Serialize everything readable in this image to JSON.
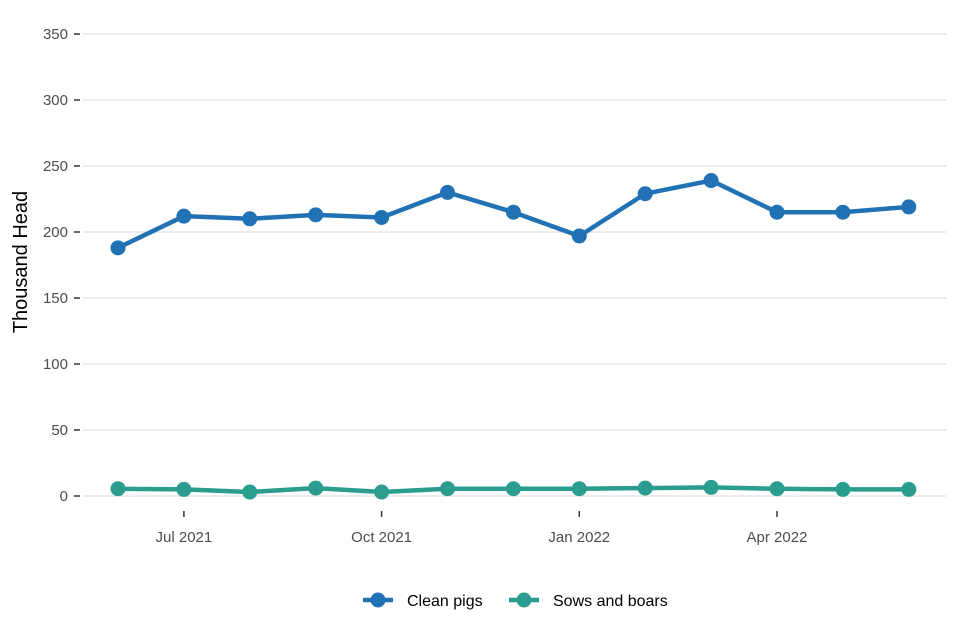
{
  "chart_data": {
    "type": "line",
    "ylabel": "Thousand Head",
    "ylim": [
      0,
      350
    ],
    "yticks": [
      0,
      50,
      100,
      150,
      200,
      250,
      300,
      350
    ],
    "x": [
      "2021-06",
      "2021-07",
      "2021-08",
      "2021-09",
      "2021-10",
      "2021-11",
      "2021-12",
      "2022-01",
      "2022-02",
      "2022-03",
      "2022-04",
      "2022-05",
      "2022-06"
    ],
    "xticks": [
      {
        "month": "2021-07",
        "label": "Jul 2021"
      },
      {
        "month": "2021-10",
        "label": "Oct 2021"
      },
      {
        "month": "2022-01",
        "label": "Jan 2022"
      },
      {
        "month": "2022-04",
        "label": "Apr 2022"
      }
    ],
    "grid": true,
    "legend_position": "bottom",
    "series": [
      {
        "name": "Clean pigs",
        "color": "#2171b5",
        "values": [
          188,
          212,
          210,
          213,
          211,
          230,
          215,
          197,
          229,
          239,
          215,
          215,
          219
        ]
      },
      {
        "name": "Sows and boars",
        "color": "#2a9d8f",
        "values": [
          5.5,
          5,
          3,
          6,
          3,
          5.5,
          5.5,
          5.5,
          6,
          6.5,
          5.5,
          5,
          5
        ]
      }
    ]
  }
}
